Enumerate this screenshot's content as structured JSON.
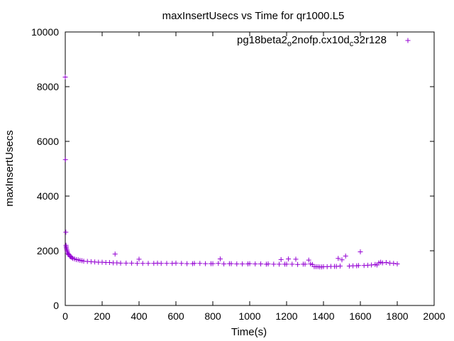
{
  "chart_data": {
    "type": "scatter",
    "title": "maxInsertUsecs vs Time for qr1000.L5",
    "xlabel": "Time(s)",
    "ylabel": "maxInsertUsecs",
    "xlim": [
      0,
      2000
    ],
    "ylim": [
      0,
      10000
    ],
    "xticks": [
      0,
      200,
      400,
      600,
      800,
      1000,
      1200,
      1400,
      1600,
      1800,
      2000
    ],
    "yticks": [
      0,
      2000,
      4000,
      6000,
      8000,
      10000
    ],
    "grid": false,
    "legend_position": "top-right",
    "marker": "+",
    "series": [
      {
        "name_parts": [
          "pg18beta2",
          "o",
          "2nofp.cx10d",
          "c",
          "32r128"
        ],
        "color": "#9400d3",
        "x": [
          0,
          1,
          3,
          4,
          5,
          6,
          8,
          10,
          12,
          15,
          18,
          20,
          25,
          30,
          35,
          40,
          50,
          60,
          70,
          80,
          90,
          100,
          120,
          140,
          160,
          180,
          200,
          220,
          240,
          260,
          270,
          280,
          300,
          330,
          360,
          390,
          400,
          420,
          450,
          480,
          500,
          520,
          550,
          580,
          600,
          630,
          660,
          690,
          700,
          730,
          760,
          790,
          800,
          830,
          840,
          860,
          890,
          900,
          930,
          960,
          990,
          1000,
          1030,
          1060,
          1090,
          1100,
          1130,
          1160,
          1170,
          1190,
          1200,
          1210,
          1230,
          1250,
          1260,
          1290,
          1300,
          1320,
          1330,
          1340,
          1350,
          1360,
          1370,
          1380,
          1390,
          1400,
          1420,
          1440,
          1460,
          1470,
          1480,
          1490,
          1500,
          1520,
          1540,
          1560,
          1580,
          1590,
          1600,
          1620,
          1640,
          1660,
          1680,
          1690,
          1700,
          1710,
          1720,
          1740,
          1760,
          1780,
          1800
        ],
        "y": [
          8350,
          5330,
          2680,
          2200,
          2150,
          2100,
          2050,
          2000,
          1950,
          1900,
          1870,
          1850,
          1800,
          1780,
          1760,
          1720,
          1700,
          1680,
          1670,
          1650,
          1640,
          1620,
          1610,
          1600,
          1590,
          1580,
          1580,
          1570,
          1570,
          1560,
          1880,
          1560,
          1550,
          1550,
          1550,
          1540,
          1690,
          1540,
          1540,
          1540,
          1550,
          1540,
          1540,
          1540,
          1550,
          1540,
          1530,
          1530,
          1540,
          1540,
          1530,
          1530,
          1530,
          1540,
          1700,
          1520,
          1530,
          1530,
          1520,
          1520,
          1520,
          1530,
          1520,
          1520,
          1510,
          1520,
          1510,
          1510,
          1680,
          1510,
          1510,
          1700,
          1510,
          1690,
          1500,
          1510,
          1510,
          1660,
          1520,
          1500,
          1420,
          1420,
          1420,
          1410,
          1410,
          1420,
          1420,
          1430,
          1430,
          1430,
          1720,
          1440,
          1670,
          1810,
          1440,
          1450,
          1450,
          1460,
          1960,
          1460,
          1470,
          1480,
          1500,
          1480,
          1560,
          1580,
          1560,
          1570,
          1550,
          1540,
          1520
        ]
      }
    ]
  }
}
